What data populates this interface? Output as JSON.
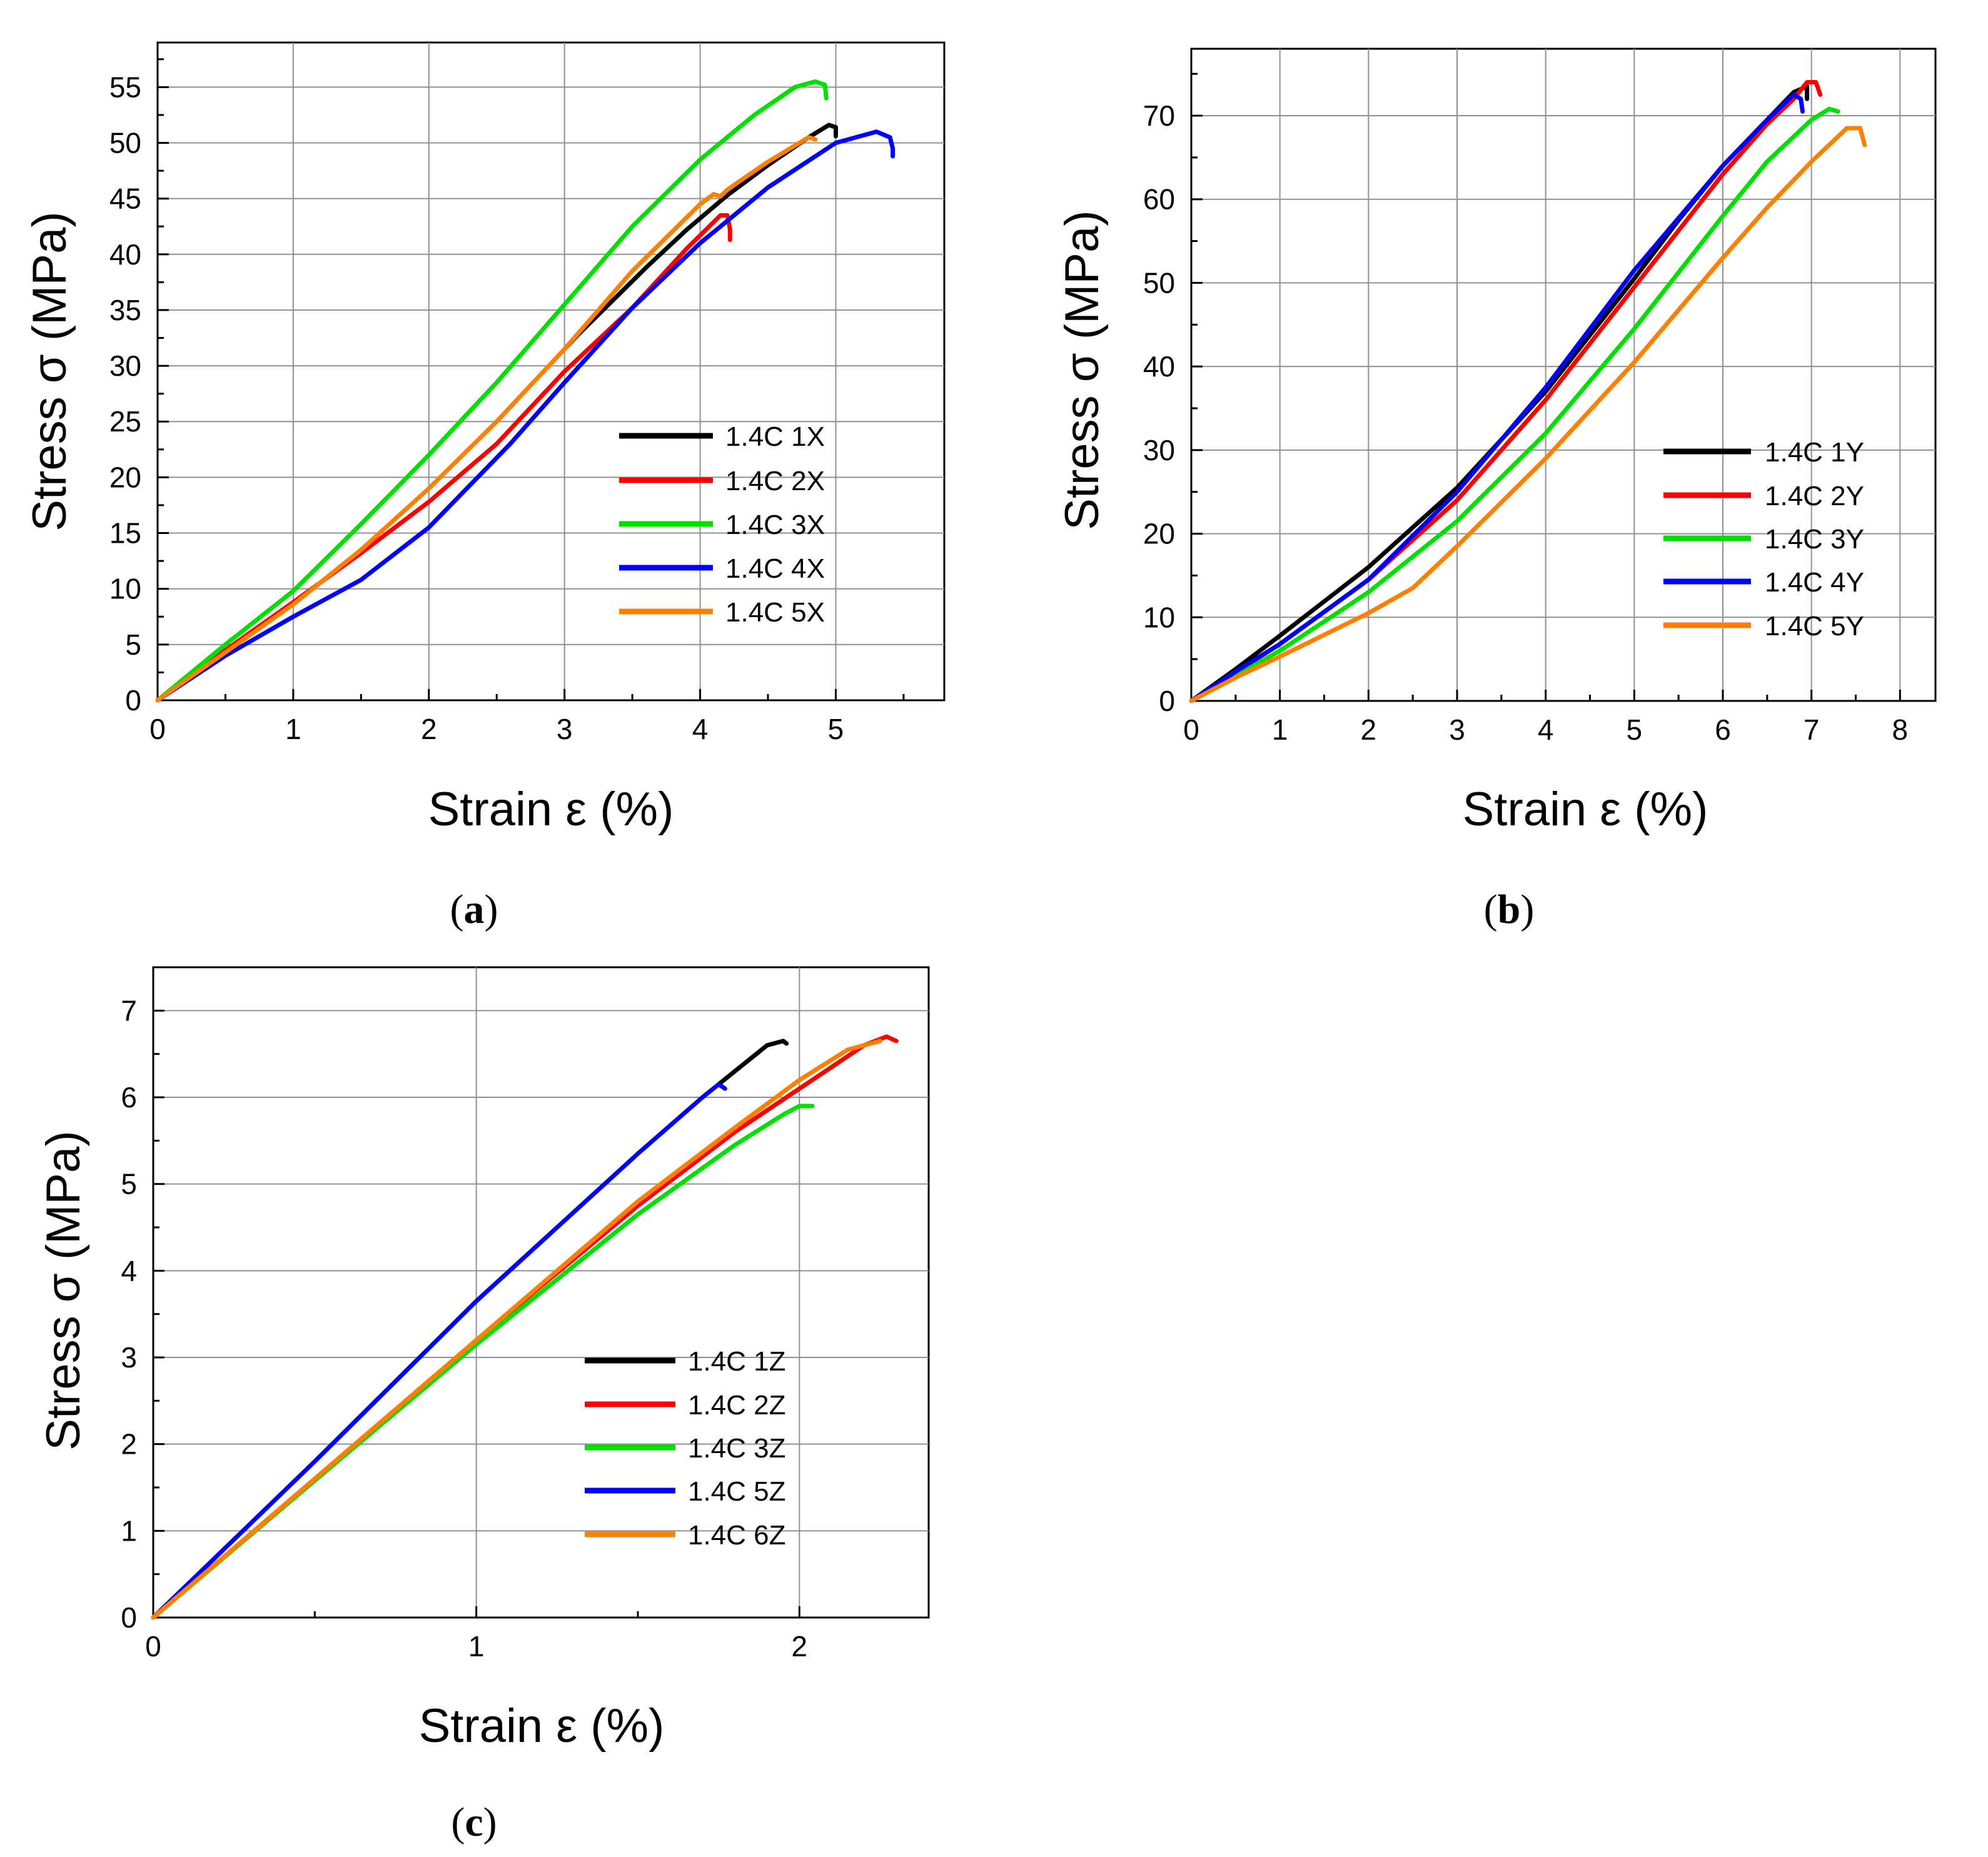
{
  "chart_data": [
    {
      "type": "line",
      "panel_label": "a",
      "xlabel": "Strain ε (%)",
      "ylabel": "Stress σ (MPa)",
      "xlim": [
        0,
        5.8
      ],
      "ylim": [
        0,
        59
      ],
      "xticks": [
        0,
        1,
        2,
        3,
        4,
        5
      ],
      "yticks": [
        0,
        5,
        10,
        15,
        20,
        25,
        30,
        35,
        40,
        45,
        50,
        55
      ],
      "grid": true,
      "legend_position": "center-right",
      "series": [
        {
          "name": "1.4C 1X",
          "color": "#000000",
          "points": [
            [
              3.0,
              31.5
            ],
            [
              3.1,
              32.8
            ],
            [
              3.3,
              35.2
            ],
            [
              3.6,
              38.8
            ],
            [
              3.9,
              42.2
            ],
            [
              4.2,
              45.3
            ],
            [
              4.5,
              48.0
            ],
            [
              4.8,
              50.5
            ],
            [
              4.95,
              51.6
            ],
            [
              5.0,
              51.4
            ],
            [
              5.0,
              50.6
            ]
          ]
        },
        {
          "name": "1.4C 2X",
          "color": "#ff0000",
          "points": [
            [
              0,
              0
            ],
            [
              0.5,
              4.5
            ],
            [
              1.0,
              8.8
            ],
            [
              1.5,
              13.2
            ],
            [
              2.0,
              17.8
            ],
            [
              2.5,
              23.0
            ],
            [
              3.0,
              29.5
            ],
            [
              3.5,
              35.2
            ],
            [
              3.9,
              40.5
            ],
            [
              4.15,
              43.5
            ],
            [
              4.2,
              43.5
            ],
            [
              4.22,
              42.3
            ],
            [
              4.22,
              41.3
            ]
          ]
        },
        {
          "name": "1.4C 3X",
          "color": "#00e000",
          "points": [
            [
              0,
              0
            ],
            [
              0.5,
              5.0
            ],
            [
              1.0,
              9.8
            ],
            [
              1.5,
              15.8
            ],
            [
              2.0,
              22.0
            ],
            [
              2.5,
              28.5
            ],
            [
              3.0,
              35.5
            ],
            [
              3.5,
              42.5
            ],
            [
              4.0,
              48.5
            ],
            [
              4.4,
              52.5
            ],
            [
              4.7,
              55.0
            ],
            [
              4.85,
              55.5
            ],
            [
              4.92,
              55.2
            ],
            [
              4.93,
              54.0
            ]
          ]
        },
        {
          "name": "1.4C 4X",
          "color": "#0000ff",
          "points": [
            [
              0,
              0
            ],
            [
              0.5,
              4.0
            ],
            [
              1.0,
              7.5
            ],
            [
              1.5,
              10.8
            ],
            [
              2.0,
              15.5
            ],
            [
              2.6,
              23.0
            ],
            [
              3.0,
              28.5
            ],
            [
              3.5,
              35.2
            ],
            [
              4.0,
              41.0
            ],
            [
              4.5,
              46.0
            ],
            [
              5.0,
              50.0
            ],
            [
              5.3,
              51.0
            ],
            [
              5.4,
              50.5
            ],
            [
              5.42,
              49.5
            ],
            [
              5.42,
              48.8
            ]
          ]
        },
        {
          "name": "1.4C 5X",
          "color": "#ff8000",
          "points": [
            [
              0,
              0
            ],
            [
              0.5,
              4.3
            ],
            [
              1.0,
              8.6
            ],
            [
              1.5,
              13.5
            ],
            [
              2.0,
              19.0
            ],
            [
              2.5,
              25.0
            ],
            [
              3.0,
              31.5
            ],
            [
              3.5,
              38.5
            ],
            [
              4.0,
              44.5
            ],
            [
              4.1,
              45.4
            ],
            [
              4.15,
              45.2
            ],
            [
              4.2,
              45.8
            ],
            [
              4.5,
              48.3
            ],
            [
              4.8,
              50.5
            ],
            [
              4.85,
              50.3
            ]
          ]
        }
      ]
    },
    {
      "type": "line",
      "panel_label": "b",
      "xlabel": "Strain ε (%)",
      "ylabel": "Stress σ (MPa)",
      "xlim": [
        0,
        8.4
      ],
      "ylim": [
        0,
        78
      ],
      "xticks": [
        0,
        1,
        2,
        3,
        4,
        5,
        6,
        7,
        8
      ],
      "yticks": [
        0,
        10,
        20,
        30,
        40,
        50,
        60,
        70
      ],
      "grid": true,
      "legend_position": "center-right",
      "series": [
        {
          "name": "1.4C 1Y",
          "color": "#000000",
          "points": [
            [
              0,
              0
            ],
            [
              0.5,
              3.8
            ],
            [
              1.0,
              7.8
            ],
            [
              2.0,
              16.0
            ],
            [
              3.0,
              25.5
            ],
            [
              4.0,
              37.0
            ],
            [
              5.0,
              50.5
            ],
            [
              5.5,
              57.5
            ],
            [
              6.0,
              64.0
            ],
            [
              6.5,
              69.5
            ],
            [
              6.8,
              72.8
            ],
            [
              6.95,
              73.5
            ],
            [
              6.95,
              72.0
            ]
          ]
        },
        {
          "name": "1.4C 2Y",
          "color": "#ff0000",
          "points": [
            [
              0,
              0
            ],
            [
              1.0,
              6.8
            ],
            [
              2.0,
              14.5
            ],
            [
              3.0,
              24.0
            ],
            [
              4.0,
              36.0
            ],
            [
              5.0,
              49.5
            ],
            [
              6.0,
              63.0
            ],
            [
              6.5,
              69.0
            ],
            [
              6.8,
              72.0
            ],
            [
              6.95,
              74.0
            ],
            [
              7.05,
              74.0
            ],
            [
              7.1,
              72.5
            ]
          ]
        },
        {
          "name": "1.4C 3Y",
          "color": "#00e000",
          "points": [
            [
              0,
              0
            ],
            [
              1.0,
              6.0
            ],
            [
              2.0,
              13.0
            ],
            [
              3.0,
              21.5
            ],
            [
              4.0,
              32.0
            ],
            [
              5.0,
              44.5
            ],
            [
              6.0,
              58.0
            ],
            [
              6.5,
              64.5
            ],
            [
              7.0,
              69.5
            ],
            [
              7.2,
              70.8
            ],
            [
              7.3,
              70.5
            ]
          ]
        },
        {
          "name": "1.4C 4Y",
          "color": "#0000ff",
          "points": [
            [
              0,
              0
            ],
            [
              0.5,
              3.5
            ],
            [
              1.0,
              6.8
            ],
            [
              2.0,
              14.5
            ],
            [
              3.0,
              25.0
            ],
            [
              4.0,
              37.5
            ],
            [
              5.0,
              51.5
            ],
            [
              6.0,
              64.0
            ],
            [
              6.5,
              69.5
            ],
            [
              6.8,
              72.5
            ],
            [
              6.88,
              72.0
            ],
            [
              6.9,
              70.5
            ]
          ]
        },
        {
          "name": "1.4C 5Y",
          "color": "#ff8000",
          "points": [
            [
              0,
              0
            ],
            [
              0.5,
              2.8
            ],
            [
              1.0,
              5.3
            ],
            [
              2.0,
              10.5
            ],
            [
              2.5,
              13.5
            ],
            [
              3.0,
              18.5
            ],
            [
              4.0,
              29.0
            ],
            [
              5.0,
              40.5
            ],
            [
              6.0,
              53.0
            ],
            [
              6.5,
              59.0
            ],
            [
              7.0,
              64.5
            ],
            [
              7.4,
              68.5
            ],
            [
              7.55,
              68.5
            ],
            [
              7.6,
              66.5
            ]
          ]
        }
      ]
    },
    {
      "type": "line",
      "panel_label": "c",
      "xlabel": "Strain ε (%)",
      "ylabel": "Stress σ (MPa)",
      "xlim": [
        0,
        2.4
      ],
      "ylim": [
        0,
        7.5
      ],
      "xticks": [
        0,
        1,
        2
      ],
      "yticks": [
        0,
        1,
        2,
        3,
        4,
        5,
        6,
        7
      ],
      "grid": true,
      "legend_position": "center-right",
      "series": [
        {
          "name": "1.4C 1Z",
          "color": "#000000",
          "points": [
            [
              1.75,
              6.15
            ],
            [
              1.8,
              6.3
            ],
            [
              1.85,
              6.45
            ],
            [
              1.9,
              6.6
            ],
            [
              1.95,
              6.65
            ],
            [
              1.96,
              6.62
            ]
          ]
        },
        {
          "name": "1.4C 2Z",
          "color": "#ff0000",
          "points": [
            [
              0,
              0
            ],
            [
              0.5,
              1.6
            ],
            [
              1.0,
              3.2
            ],
            [
              1.5,
              4.75
            ],
            [
              1.8,
              5.6
            ],
            [
              2.0,
              6.1
            ],
            [
              2.2,
              6.6
            ],
            [
              2.27,
              6.7
            ],
            [
              2.3,
              6.65
            ]
          ]
        },
        {
          "name": "1.4C 3Z",
          "color": "#00e000",
          "points": [
            [
              0,
              0
            ],
            [
              0.5,
              1.58
            ],
            [
              1.0,
              3.15
            ],
            [
              1.5,
              4.65
            ],
            [
              1.8,
              5.45
            ],
            [
              1.95,
              5.8
            ],
            [
              2.0,
              5.9
            ],
            [
              2.04,
              5.9
            ]
          ]
        },
        {
          "name": "1.4C 5Z",
          "color": "#0000ff",
          "points": [
            [
              0,
              0
            ],
            [
              0.5,
              1.8
            ],
            [
              1.0,
              3.65
            ],
            [
              1.5,
              5.35
            ],
            [
              1.7,
              6.0
            ],
            [
              1.75,
              6.15
            ],
            [
              1.77,
              6.1
            ]
          ]
        },
        {
          "name": "1.4C 6Z",
          "color": "#ff8000",
          "points": [
            [
              0,
              0
            ],
            [
              0.5,
              1.6
            ],
            [
              1.0,
              3.2
            ],
            [
              1.5,
              4.8
            ],
            [
              1.8,
              5.65
            ],
            [
              2.0,
              6.2
            ],
            [
              2.15,
              6.55
            ],
            [
              2.25,
              6.65
            ]
          ]
        }
      ]
    }
  ]
}
